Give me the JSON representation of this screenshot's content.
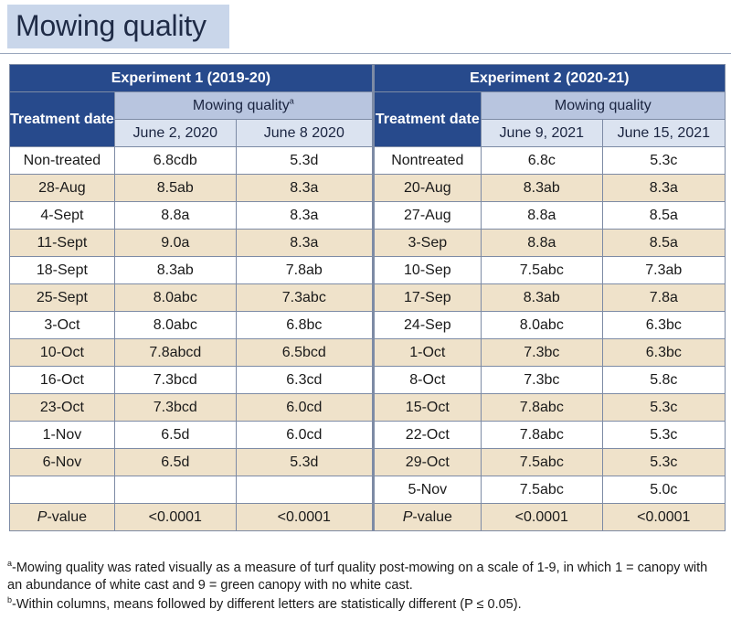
{
  "title": "Mowing quality",
  "experiments": [
    {
      "header": "Experiment 1 (2019-20)",
      "treatment_header": "Treatment date",
      "metric_label": "Mowing quality",
      "metric_sup": "a",
      "dates": [
        "June 2, 2020",
        "June 8 2020"
      ]
    },
    {
      "header": "Experiment 2 (2020-21)",
      "treatment_header": "Treatment date",
      "metric_label": "Mowing quality",
      "metric_sup": "",
      "dates": [
        "June 9, 2021",
        "June 15, 2021"
      ]
    }
  ],
  "rows": [
    {
      "e1_date": "Non-treated",
      "e1_v1": "6.8cdb",
      "e1_v2": "5.3d",
      "e2_date": "Nontreated",
      "e2_v1": "6.8c",
      "e2_v2": "5.3c"
    },
    {
      "e1_date": "28-Aug",
      "e1_v1": "8.5ab",
      "e1_v2": "8.3a",
      "e2_date": "20-Aug",
      "e2_v1": "8.3ab",
      "e2_v2": "8.3a"
    },
    {
      "e1_date": "4-Sept",
      "e1_v1": "8.8a",
      "e1_v2": "8.3a",
      "e2_date": "27-Aug",
      "e2_v1": "8.8a",
      "e2_v2": "8.5a"
    },
    {
      "e1_date": "11-Sept",
      "e1_v1": "9.0a",
      "e1_v2": "8.3a",
      "e2_date": "3-Sep",
      "e2_v1": "8.8a",
      "e2_v2": "8.5a"
    },
    {
      "e1_date": "18-Sept",
      "e1_v1": "8.3ab",
      "e1_v2": "7.8ab",
      "e2_date": "10-Sep",
      "e2_v1": "7.5abc",
      "e2_v2": "7.3ab"
    },
    {
      "e1_date": "25-Sept",
      "e1_v1": "8.0abc",
      "e1_v2": "7.3abc",
      "e2_date": "17-Sep",
      "e2_v1": "8.3ab",
      "e2_v2": "7.8a"
    },
    {
      "e1_date": "3-Oct",
      "e1_v1": "8.0abc",
      "e1_v2": "6.8bc",
      "e2_date": "24-Sep",
      "e2_v1": "8.0abc",
      "e2_v2": "6.3bc"
    },
    {
      "e1_date": "10-Oct",
      "e1_v1": "7.8abcd",
      "e1_v2": "6.5bcd",
      "e2_date": "1-Oct",
      "e2_v1": "7.3bc",
      "e2_v2": "6.3bc"
    },
    {
      "e1_date": "16-Oct",
      "e1_v1": "7.3bcd",
      "e1_v2": "6.3cd",
      "e2_date": "8-Oct",
      "e2_v1": "7.3bc",
      "e2_v2": "5.8c"
    },
    {
      "e1_date": "23-Oct",
      "e1_v1": "7.3bcd",
      "e1_v2": "6.0cd",
      "e2_date": "15-Oct",
      "e2_v1": "7.8abc",
      "e2_v2": "5.3c"
    },
    {
      "e1_date": "1-Nov",
      "e1_v1": "6.5d",
      "e1_v2": "6.0cd",
      "e2_date": "22-Oct",
      "e2_v1": "7.8abc",
      "e2_v2": "5.3c"
    },
    {
      "e1_date": "6-Nov",
      "e1_v1": "6.5d",
      "e1_v2": "5.3d",
      "e2_date": "29-Oct",
      "e2_v1": "7.5abc",
      "e2_v2": "5.3c"
    },
    {
      "e1_date": "",
      "e1_v1": "",
      "e1_v2": "",
      "e2_date": "5-Nov",
      "e2_v1": "7.5abc",
      "e2_v2": "5.0c"
    }
  ],
  "pvalue": {
    "label_italic": "P",
    "label_rest": "-value",
    "e1_v1": "<0.0001",
    "e1_v2": "<0.0001",
    "e2_v1": "<0.0001",
    "e2_v2": "<0.0001"
  },
  "footnotes": [
    {
      "mark": "a",
      "text": "-Mowing quality was rated visually as a measure of turf quality post-mowing on a scale of 1-9, in which 1 = canopy with an abundance of white cast and 9 = green canopy with no white cast."
    },
    {
      "mark": "b",
      "text": "-Within columns, means followed by different letters are statistically different (P ≤ 0.05)."
    }
  ]
}
